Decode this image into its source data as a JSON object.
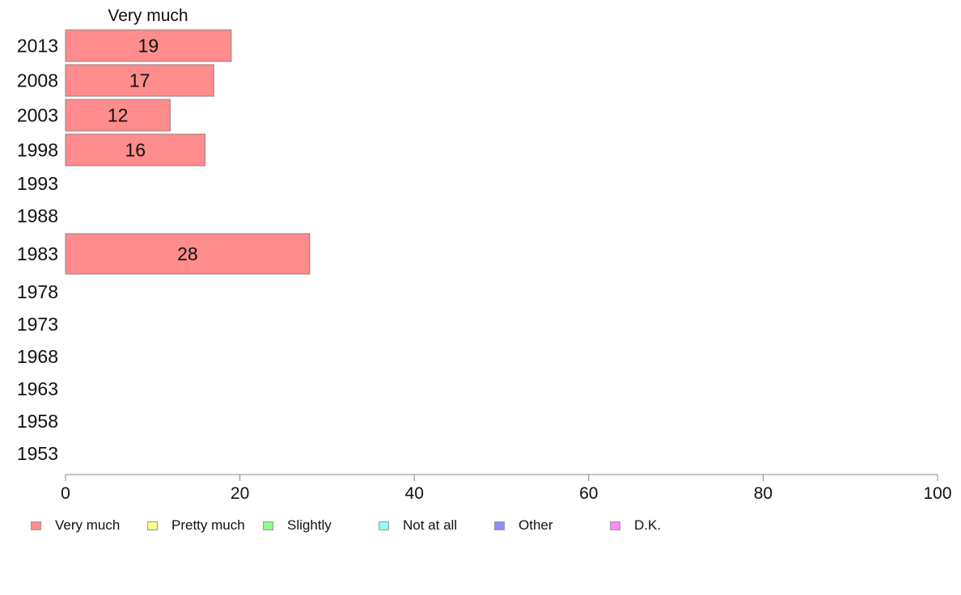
{
  "chart_data": {
    "type": "bar",
    "orientation": "horizontal",
    "categories": [
      "2013",
      "2008",
      "2003",
      "1998",
      "1993",
      "1988",
      "1983",
      "1978",
      "1973",
      "1968",
      "1963",
      "1958",
      "1953"
    ],
    "series": [
      {
        "name": "Very much",
        "color": "#ff8c8c",
        "values": [
          19,
          17,
          12,
          16,
          null,
          null,
          28,
          null,
          null,
          null,
          null,
          null,
          null
        ]
      }
    ],
    "column_header": "Very much",
    "xlim": [
      0,
      100
    ],
    "xticks": [
      0,
      20,
      40,
      60,
      80,
      100
    ],
    "grid": false,
    "legend_placement": "bottom"
  },
  "legend": [
    {
      "label": "Very much",
      "color": "#ff8c8c"
    },
    {
      "label": "Pretty much",
      "color": "#ffff8c"
    },
    {
      "label": "Slightly",
      "color": "#8cff8c"
    },
    {
      "label": "Not at all",
      "color": "#8cffff"
    },
    {
      "label": "Other",
      "color": "#8c8cff"
    },
    {
      "label": "D.K.",
      "color": "#ff8cff"
    }
  ]
}
